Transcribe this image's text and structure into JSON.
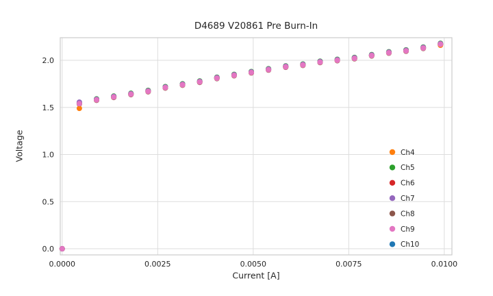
{
  "chart_data": {
    "type": "scatter",
    "title": "D4689 V20861 Pre Burn-In",
    "xlabel": "Current [A]",
    "ylabel": "Voltage",
    "xlim": [
      -5e-05,
      0.0102
    ],
    "ylim": [
      -0.065,
      2.24
    ],
    "xticks": [
      0.0,
      0.0025,
      0.005,
      0.0075,
      0.01
    ],
    "xtick_labels": [
      "0.0000",
      "0.0025",
      "0.0050",
      "0.0075",
      "0.0100"
    ],
    "yticks": [
      0.0,
      0.5,
      1.0,
      1.5,
      2.0
    ],
    "ytick_labels": [
      "0.0",
      "0.5",
      "1.0",
      "1.5",
      "2.0"
    ],
    "grid": true,
    "legend_position": "lower right",
    "grid_color": "#dddddd",
    "spine_color": "#cccccc",
    "text_color": "#262626",
    "x": [
      0.0,
      0.00045,
      0.0009,
      0.00135,
      0.0018,
      0.00225,
      0.0027,
      0.00315,
      0.0036,
      0.00405,
      0.0045,
      0.00495,
      0.0054,
      0.00585,
      0.0063,
      0.00675,
      0.0072,
      0.00765,
      0.0081,
      0.00855,
      0.009,
      0.00945,
      0.0099
    ],
    "series": [
      {
        "name": "Ch4",
        "color": "#ff7f0e",
        "values": [
          0.0,
          1.49,
          1.58,
          1.61,
          1.64,
          1.67,
          1.71,
          1.74,
          1.77,
          1.81,
          1.84,
          1.87,
          1.9,
          1.93,
          1.95,
          1.98,
          2.0,
          2.02,
          2.05,
          2.08,
          2.1,
          2.13,
          2.16
        ]
      },
      {
        "name": "Ch5",
        "color": "#2ca02c",
        "values": [
          0.0,
          1.55,
          1.59,
          1.62,
          1.65,
          1.68,
          1.72,
          1.75,
          1.78,
          1.82,
          1.85,
          1.88,
          1.91,
          1.94,
          1.96,
          1.99,
          2.01,
          2.03,
          2.06,
          2.09,
          2.11,
          2.14,
          2.18
        ]
      },
      {
        "name": "Ch6",
        "color": "#d62728",
        "values": [
          0.0,
          1.544,
          1.584,
          1.614,
          1.644,
          1.674,
          1.714,
          1.744,
          1.774,
          1.814,
          1.844,
          1.874,
          1.904,
          1.934,
          1.954,
          1.984,
          2.004,
          2.024,
          2.054,
          2.084,
          2.104,
          2.134,
          2.174
        ]
      },
      {
        "name": "Ch7",
        "color": "#9467bd",
        "values": [
          0.0,
          1.556,
          1.586,
          1.616,
          1.646,
          1.676,
          1.716,
          1.746,
          1.776,
          1.816,
          1.846,
          1.876,
          1.906,
          1.936,
          1.956,
          1.986,
          2.006,
          2.026,
          2.056,
          2.086,
          2.106,
          2.136,
          2.176
        ]
      },
      {
        "name": "Ch8",
        "color": "#8c564b",
        "values": [
          0.0,
          1.536,
          1.576,
          1.606,
          1.636,
          1.666,
          1.706,
          1.736,
          1.766,
          1.806,
          1.836,
          1.866,
          1.896,
          1.926,
          1.946,
          1.976,
          1.996,
          2.016,
          2.046,
          2.076,
          2.096,
          2.126,
          2.166
        ]
      },
      {
        "name": "Ch9",
        "color": "#e377c2",
        "values": [
          0.0,
          1.54,
          1.58,
          1.61,
          1.64,
          1.67,
          1.71,
          1.74,
          1.77,
          1.81,
          1.84,
          1.87,
          1.9,
          1.93,
          1.95,
          1.98,
          2.0,
          2.02,
          2.05,
          2.08,
          2.1,
          2.13,
          2.17
        ]
      },
      {
        "name": "Ch10",
        "color": "#1f77b4",
        "values": [
          0.0,
          1.54,
          1.58,
          1.61,
          1.64,
          1.67,
          1.71,
          1.74,
          1.77,
          1.81,
          1.84,
          1.87,
          1.9,
          1.93,
          1.95,
          1.98,
          2.0,
          2.02,
          2.05,
          2.08,
          2.1,
          2.13,
          2.17
        ]
      }
    ],
    "draw_order": [
      "Ch10",
      "Ch8",
      "Ch6",
      "Ch4",
      "Ch5",
      "Ch7",
      "Ch9"
    ],
    "marker_radius": 4
  }
}
